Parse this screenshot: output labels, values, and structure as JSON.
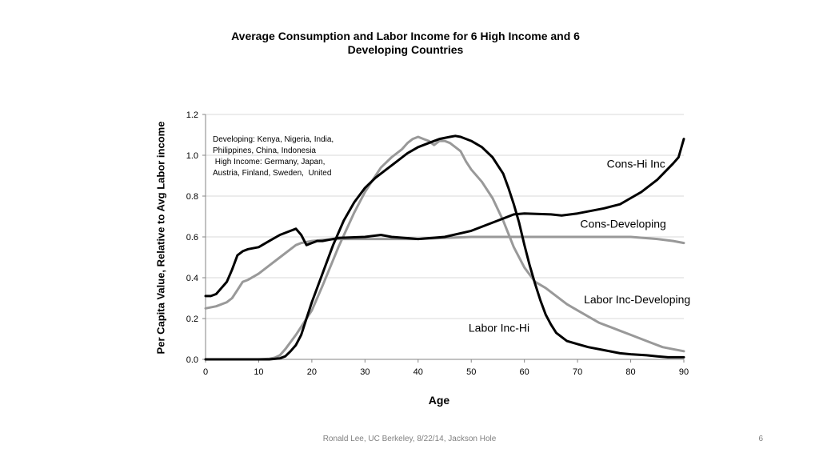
{
  "footer": {
    "text": "Ronald Lee, UC Berkeley, 8/22/14, Jackson Hole",
    "page": "6"
  },
  "chart_data": {
    "type": "line",
    "title": "Average Consumption and Labor Income for 6 High Income and 6 Developing Countries",
    "xlabel": "Age",
    "ylabel": "Per Capita Value, Relative to Avg Labor income",
    "xlim": [
      0,
      90
    ],
    "ylim": [
      0,
      1.2
    ],
    "x_ticks": [
      "0",
      "10",
      "20",
      "30",
      "40",
      "50",
      "60",
      "70",
      "80",
      "90"
    ],
    "y_ticks": [
      "0.0",
      "0.2",
      "0.4",
      "0.6",
      "0.8",
      "1.0",
      "1.2"
    ],
    "grid": "horizontal",
    "legend": "none",
    "annotation": [
      "Developing: Kenya, Nigeria, India,",
      "Philippines, China, Indonesia",
      " High Income: Germany, Japan,",
      "Austria, Finland, Sweden,  United"
    ],
    "series": [
      {
        "name": "Cons-Hi Inc",
        "color": "#000000",
        "x": [
          0,
          1,
          2,
          3,
          4,
          5,
          6,
          7,
          8,
          10,
          12,
          14,
          16,
          17,
          18,
          19,
          20,
          21,
          22,
          25,
          30,
          33,
          35,
          40,
          45,
          50,
          55,
          58,
          60,
          65,
          67,
          70,
          75,
          78,
          80,
          82,
          85,
          88,
          89,
          90
        ],
        "y": [
          0.31,
          0.31,
          0.32,
          0.35,
          0.38,
          0.44,
          0.51,
          0.53,
          0.54,
          0.55,
          0.58,
          0.61,
          0.63,
          0.64,
          0.61,
          0.56,
          0.57,
          0.58,
          0.58,
          0.595,
          0.6,
          0.61,
          0.6,
          0.59,
          0.6,
          0.63,
          0.68,
          0.71,
          0.715,
          0.71,
          0.705,
          0.715,
          0.74,
          0.76,
          0.79,
          0.82,
          0.88,
          0.96,
          0.99,
          1.08
        ]
      },
      {
        "name": "Cons-Developing",
        "color": "#999999",
        "x": [
          0,
          2,
          4,
          5,
          6,
          7,
          8,
          10,
          12,
          14,
          16,
          17,
          18,
          20,
          22,
          25,
          30,
          35,
          40,
          45,
          50,
          55,
          60,
          65,
          70,
          75,
          80,
          85,
          88,
          90
        ],
        "y": [
          0.25,
          0.26,
          0.28,
          0.3,
          0.34,
          0.38,
          0.39,
          0.42,
          0.46,
          0.5,
          0.54,
          0.56,
          0.57,
          0.58,
          0.585,
          0.59,
          0.59,
          0.59,
          0.59,
          0.595,
          0.6,
          0.6,
          0.6,
          0.6,
          0.6,
          0.6,
          0.6,
          0.59,
          0.58,
          0.57
        ]
      },
      {
        "name": "Labor Inc-Developing",
        "color": "#999999",
        "x": [
          0,
          10,
          12,
          13,
          14,
          15,
          17,
          20,
          22,
          25,
          28,
          30,
          32,
          33,
          35,
          37,
          38,
          39,
          40,
          41,
          42,
          43,
          44,
          45,
          46,
          47,
          48,
          49,
          50,
          52,
          54,
          56,
          58,
          60,
          62,
          64,
          66,
          68,
          70,
          72,
          74,
          76,
          78,
          80,
          82,
          84,
          86,
          88,
          90
        ],
        "y": [
          0,
          0,
          0.003,
          0.008,
          0.02,
          0.05,
          0.12,
          0.24,
          0.36,
          0.55,
          0.72,
          0.82,
          0.9,
          0.94,
          0.99,
          1.03,
          1.06,
          1.08,
          1.09,
          1.08,
          1.07,
          1.05,
          1.07,
          1.07,
          1.06,
          1.04,
          1.02,
          0.97,
          0.93,
          0.87,
          0.79,
          0.68,
          0.55,
          0.45,
          0.38,
          0.35,
          0.31,
          0.27,
          0.24,
          0.21,
          0.18,
          0.16,
          0.14,
          0.12,
          0.1,
          0.08,
          0.06,
          0.05,
          0.04
        ]
      },
      {
        "name": "Labor Inc-Hi",
        "color": "#000000",
        "x": [
          0,
          12,
          14,
          15,
          16,
          17,
          18,
          19,
          20,
          22,
          24,
          26,
          28,
          30,
          32,
          34,
          36,
          38,
          40,
          42,
          44,
          46,
          47,
          48,
          50,
          52,
          54,
          56,
          57,
          58,
          59,
          60,
          61,
          62,
          63,
          64,
          65,
          66,
          68,
          70,
          72,
          75,
          78,
          80,
          83,
          85,
          87,
          90
        ],
        "y": [
          0,
          0,
          0.005,
          0.015,
          0.04,
          0.07,
          0.12,
          0.2,
          0.28,
          0.42,
          0.56,
          0.68,
          0.77,
          0.84,
          0.89,
          0.93,
          0.97,
          1.01,
          1.04,
          1.06,
          1.08,
          1.09,
          1.095,
          1.09,
          1.07,
          1.04,
          0.99,
          0.91,
          0.84,
          0.76,
          0.67,
          0.56,
          0.46,
          0.37,
          0.29,
          0.22,
          0.17,
          0.13,
          0.09,
          0.075,
          0.06,
          0.045,
          0.03,
          0.025,
          0.02,
          0.015,
          0.01,
          0.01
        ]
      }
    ],
    "series_labels": [
      {
        "text": "Cons-Hi Inc",
        "at": [
          75.5,
          0.94
        ]
      },
      {
        "text": "Cons-Developing",
        "at": [
          70.5,
          0.645
        ]
      },
      {
        "text": "Labor Inc-Developing",
        "at": [
          71.2,
          0.275
        ]
      },
      {
        "text": "Labor Inc-Hi",
        "at": [
          49.5,
          0.135
        ]
      }
    ]
  }
}
